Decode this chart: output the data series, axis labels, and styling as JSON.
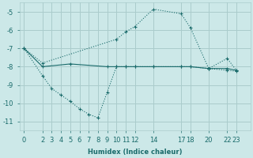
{
  "background_color": "#cce8e8",
  "grid_color": "#aacccc",
  "line_color": "#1a6b6b",
  "xlabel": "Humidex (Indice chaleur)",
  "ylim": [
    -11.5,
    -4.5
  ],
  "xlim": [
    -0.5,
    24.5
  ],
  "yticks": [
    -11,
    -10,
    -9,
    -8,
    -7,
    -6,
    -5
  ],
  "xtick_labels": [
    "0",
    "2",
    "3",
    "4",
    "5",
    "6",
    "7",
    "8",
    "9",
    "10",
    "11",
    "12",
    "14",
    "17",
    "18",
    "20",
    "22",
    "23"
  ],
  "xtick_positions": [
    0,
    2,
    3,
    4,
    5,
    6,
    7,
    8,
    9,
    10,
    11,
    12,
    14,
    17,
    18,
    20,
    22,
    23
  ],
  "series": [
    {
      "x": [
        0,
        2,
        10,
        11,
        12,
        14,
        17,
        18,
        20,
        22,
        23
      ],
      "y": [
        -7.0,
        -7.8,
        -6.5,
        -6.1,
        -5.8,
        -4.85,
        -5.1,
        -5.85,
        -8.1,
        -7.55,
        -8.2
      ],
      "linestyle": ":"
    },
    {
      "x": [
        0,
        2,
        3,
        4,
        5,
        6,
        7,
        8,
        9,
        10,
        11,
        12,
        14,
        17,
        18,
        20,
        22,
        23
      ],
      "y": [
        -7.0,
        -8.5,
        -9.2,
        -9.55,
        -9.9,
        -10.3,
        -10.6,
        -10.8,
        -9.4,
        -8.0,
        -8.0,
        -8.0,
        -8.0,
        -8.0,
        -8.0,
        -8.1,
        -8.2,
        -8.25
      ],
      "linestyle": ":"
    },
    {
      "x": [
        0,
        2,
        5,
        9,
        10,
        11,
        12,
        14,
        17,
        18,
        20,
        22,
        23
      ],
      "y": [
        -7.0,
        -8.0,
        -7.85,
        -8.0,
        -8.0,
        -8.0,
        -8.0,
        -8.0,
        -8.0,
        -8.0,
        -8.1,
        -8.1,
        -8.2
      ],
      "linestyle": "-"
    }
  ]
}
